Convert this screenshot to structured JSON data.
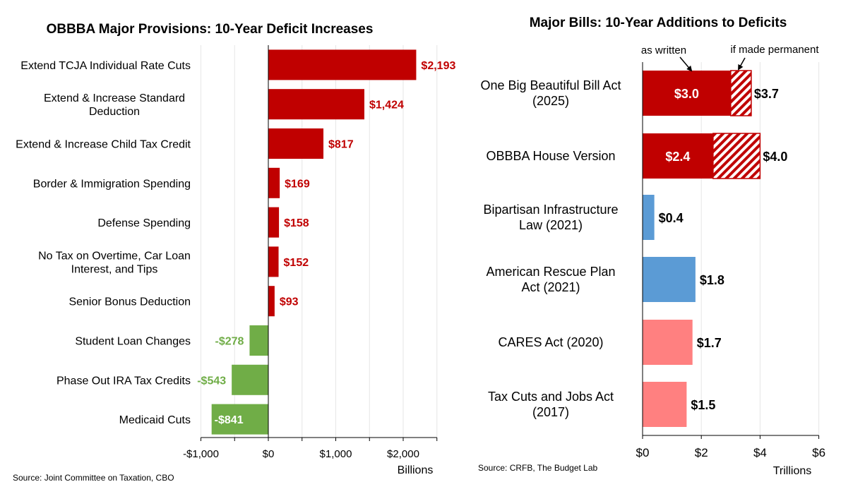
{
  "chart_data": [
    {
      "type": "bar",
      "orientation": "horizontal",
      "title": "OBBBA Major Provisions: 10-Year Deficit Increases",
      "unit_label": "Billions",
      "source": "Source: Joint Committee on Taxation, CBO",
      "xlim": [
        -1000,
        2500
      ],
      "xticks": [
        {
          "value": -1000,
          "label": "-$1,000"
        },
        {
          "value": 0,
          "label": "$0"
        },
        {
          "value": 1000,
          "label": "$1,000"
        },
        {
          "value": 2000,
          "label": "$2,000"
        }
      ],
      "grid": true,
      "categories": [
        "Extend TCJA Individual Rate Cuts",
        "Extend & Increase Standard Deduction",
        "Extend & Increase Child Tax Credit",
        "Border & Immigration Spending",
        "Defense Spending",
        "No Tax on Overtime, Car Loan Interest, and Tips",
        "Senior Bonus Deduction",
        "Student Loan Changes",
        "Phase Out IRA Tax Credits",
        "Medicaid Cuts"
      ],
      "values": [
        2193,
        1424,
        817,
        169,
        158,
        152,
        93,
        -278,
        -543,
        -841
      ],
      "value_labels": [
        "$2,193",
        "$1,424",
        "$817",
        "$169",
        "$158",
        "$152",
        "$93",
        "-$278",
        "-$543",
        "-$841"
      ],
      "colors": {
        "positive": "#c00000",
        "negative": "#70ad47"
      }
    },
    {
      "type": "bar",
      "orientation": "horizontal",
      "stacked": true,
      "title": "Major Bills: 10-Year Additions to Deficits",
      "unit_label": "Trillions",
      "source": "Source: CRFB, The Budget Lab",
      "xlim": [
        0,
        6
      ],
      "xticks": [
        {
          "value": 0,
          "label": "$0"
        },
        {
          "value": 2,
          "label": "$2"
        },
        {
          "value": 4,
          "label": "$4"
        },
        {
          "value": 6,
          "label": "$6"
        }
      ],
      "grid": true,
      "annotations": [
        "as written",
        "if made permanent"
      ],
      "bars": [
        {
          "label_lines": [
            "One Big Beautiful Bill Act",
            "(2025)"
          ],
          "value": 3.0,
          "value_label": "$3.0",
          "permanent": 3.7,
          "permanent_label": "$3.7",
          "color": "#c00000"
        },
        {
          "label_lines": [
            "OBBBA House Version"
          ],
          "value": 2.4,
          "value_label": "$2.4",
          "permanent": 4.0,
          "permanent_label": "$4.0",
          "color": "#c00000"
        },
        {
          "label_lines": [
            "Bipartisan Infrastructure",
            "Law (2021)"
          ],
          "value": 0.4,
          "value_label": "$0.4",
          "color": "#5b9bd5"
        },
        {
          "label_lines": [
            "American Rescue Plan",
            "Act (2021)"
          ],
          "value": 1.8,
          "value_label": "$1.8",
          "color": "#5b9bd5"
        },
        {
          "label_lines": [
            "CARES Act (2020)"
          ],
          "value": 1.7,
          "value_label": "$1.7",
          "color": "#ff8080"
        },
        {
          "label_lines": [
            "Tax Cuts and Jobs Act",
            "(2017)"
          ],
          "value": 1.5,
          "value_label": "$1.5",
          "color": "#ff8080"
        }
      ]
    }
  ]
}
